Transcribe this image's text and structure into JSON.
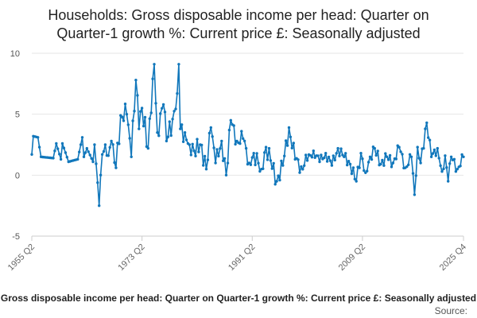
{
  "chart_data": {
    "type": "line",
    "title_lines": [
      "Households: Gross disposable income per head: Quarter on",
      "Quarter-1 growth %: Current price £: Seasonally adjusted"
    ],
    "x_start": "1955 Q2",
    "x_end": "2025 Q4",
    "x_ticks": [
      "1955 Q2",
      "1973 Q2",
      "1991 Q2",
      "2009 Q2",
      "2025 Q4"
    ],
    "y_ticks": [
      -5,
      0,
      5,
      10
    ],
    "ylim": [
      -5,
      10
    ],
    "grid": true,
    "legend_label": "Gross disposable income per head: Quarter on Quarter-1 growth %: Current price £: Seasonally adjusted",
    "source_label": "Source:",
    "series": [
      {
        "name": "Households: Gross disposable income per head: Quarter on Quarter-1 growth %: Current price £: Seasonally adjusted",
        "color": "#1177bb",
        "anchors": [
          [
            0,
            1.7
          ],
          [
            1,
            3.2
          ],
          [
            4,
            3.1
          ],
          [
            6,
            1.5
          ],
          [
            14,
            1.4
          ],
          [
            16,
            2.6
          ],
          [
            19,
            1.3
          ],
          [
            20,
            2.6
          ],
          [
            24,
            1.1
          ],
          [
            30,
            1.3
          ],
          [
            33,
            3.1
          ],
          [
            34,
            1.5
          ],
          [
            36,
            2.2
          ],
          [
            40,
            1.1
          ],
          [
            41,
            2.5
          ],
          [
            44,
            -2.5
          ],
          [
            46,
            1.7
          ],
          [
            48,
            2.5
          ],
          [
            50,
            1.6
          ],
          [
            52,
            2.8
          ],
          [
            55,
            0.6
          ],
          [
            58,
            4.9
          ],
          [
            62,
            5.0
          ],
          [
            65,
            1.5
          ],
          [
            68,
            7.8
          ],
          [
            70,
            3.8
          ],
          [
            72,
            5.5
          ],
          [
            76,
            2.2
          ],
          [
            79,
            7.9
          ],
          [
            80,
            9.1
          ],
          [
            82,
            3.5
          ],
          [
            86,
            5.8
          ],
          [
            88,
            2.8
          ],
          [
            92,
            4.6
          ],
          [
            95,
            6.7
          ],
          [
            96,
            9.1
          ],
          [
            97,
            3.8
          ],
          [
            100,
            3.5
          ],
          [
            103,
            2.5
          ],
          [
            106,
            2.0
          ],
          [
            110,
            2.5
          ],
          [
            114,
            0.5
          ],
          [
            117,
            3.9
          ],
          [
            120,
            1.0
          ],
          [
            124,
            2.8
          ],
          [
            127,
            0.0
          ],
          [
            130,
            4.5
          ],
          [
            134,
            2.8
          ],
          [
            138,
            3.0
          ],
          [
            142,
            1.0
          ],
          [
            145,
            1.8
          ],
          [
            150,
            0.5
          ],
          [
            153,
            2.3
          ],
          [
            156,
            1.2
          ],
          [
            160,
            -0.5
          ],
          [
            164,
            0.8
          ],
          [
            168,
            3.9
          ],
          [
            172,
            1.3
          ],
          [
            176,
            0.7
          ],
          [
            180,
            1.2
          ],
          [
            184,
            2.0
          ],
          [
            188,
            1.1
          ],
          [
            192,
            1.8
          ],
          [
            196,
            0.8
          ],
          [
            200,
            2.2
          ],
          [
            204,
            1.5
          ],
          [
            208,
            0.9
          ],
          [
            212,
            -0.5
          ],
          [
            215,
            1.8
          ],
          [
            218,
            0.2
          ],
          [
            221,
            1.5
          ],
          [
            224,
            2.2
          ],
          [
            228,
            0.9
          ],
          [
            232,
            1.5
          ],
          [
            236,
            1.0
          ],
          [
            240,
            2.3
          ],
          [
            244,
            0.6
          ],
          [
            248,
            1.5
          ],
          [
            250,
            -1.6
          ],
          [
            252,
            2.3
          ],
          [
            254,
            1.0
          ],
          [
            258,
            4.3
          ],
          [
            261,
            1.5
          ],
          [
            265,
            2.2
          ],
          [
            268,
            0.3
          ],
          [
            270,
            1.6
          ],
          [
            272,
            -0.5
          ],
          [
            274,
            1.5
          ],
          [
            278,
            0.5
          ],
          [
            282,
            1.5
          ]
        ]
      }
    ]
  }
}
